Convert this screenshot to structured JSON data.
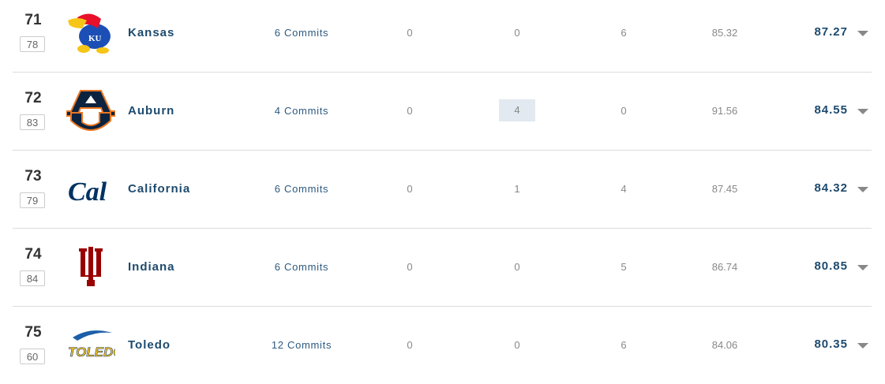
{
  "teams": [
    {
      "rank": "71",
      "prev_rank": "78",
      "name": "Kansas",
      "commits": "6 Commits",
      "c1": "0",
      "c2": "0",
      "c3": "6",
      "avg": "85.32",
      "rating": "87.27",
      "logo": "kansas-jayhawk",
      "highlight": false
    },
    {
      "rank": "72",
      "prev_rank": "83",
      "name": "Auburn",
      "commits": "4 Commits",
      "c1": "0",
      "c2": "4",
      "c3": "0",
      "avg": "91.56",
      "rating": "84.55",
      "logo": "auburn-au",
      "highlight": true
    },
    {
      "rank": "73",
      "prev_rank": "79",
      "name": "California",
      "commits": "6 Commits",
      "c1": "0",
      "c2": "1",
      "c3": "4",
      "avg": "87.45",
      "rating": "84.32",
      "logo": "cal-script",
      "highlight": false
    },
    {
      "rank": "74",
      "prev_rank": "84",
      "name": "Indiana",
      "commits": "6 Commits",
      "c1": "0",
      "c2": "0",
      "c3": "5",
      "avg": "86.74",
      "rating": "80.85",
      "logo": "indiana-iu",
      "highlight": false
    },
    {
      "rank": "75",
      "prev_rank": "60",
      "name": "Toledo",
      "commits": "12 Commits",
      "c1": "0",
      "c2": "0",
      "c3": "6",
      "avg": "84.06",
      "rating": "80.35",
      "logo": "toledo-wordmark",
      "highlight": false
    }
  ],
  "colors": {
    "team_name": "#1d4a6e",
    "highlight_bg": "#e2e9f0",
    "divider": "#dcdcdc"
  }
}
